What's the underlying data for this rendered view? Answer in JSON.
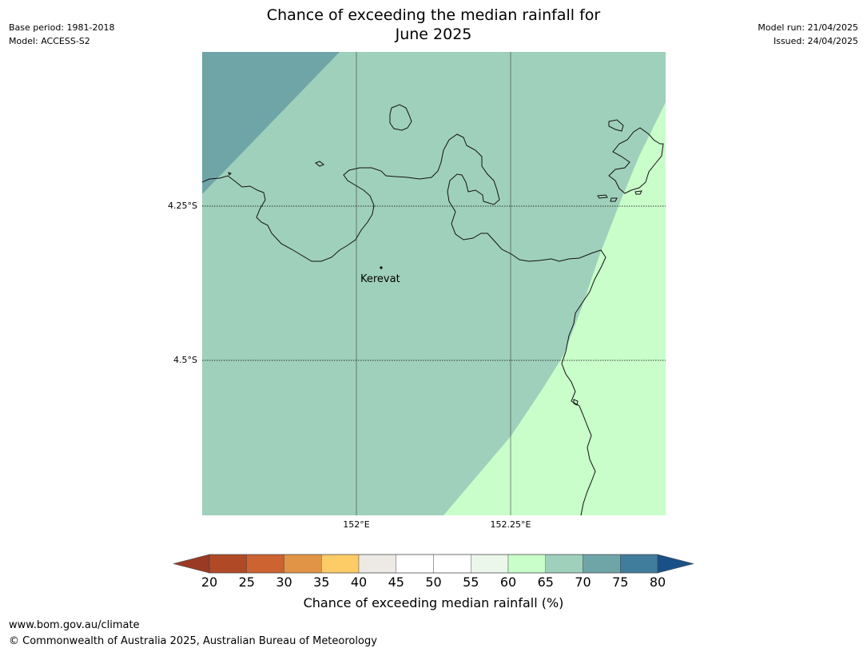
{
  "header": {
    "title_line1": "Chance of exceeding the median rainfall for",
    "title_line2": "June 2025",
    "base_period": "Base period: 1981-2018",
    "model": "Model: ACCESS-S2",
    "model_run": "Model run: 21/04/2025",
    "issued": "Issued: 24/04/2025"
  },
  "map": {
    "lat_labels": [
      "4.25°S",
      "4.5°S"
    ],
    "lon_labels": [
      "152°E",
      "152.25°E"
    ],
    "place": {
      "name": "Kerevat"
    },
    "colors": {
      "band_65_70": "#9fd0bb",
      "band_70_75": "#70a5a8",
      "band_60_65": "#c9fdca",
      "coast": "#111111"
    }
  },
  "colorbar": {
    "ticks": [
      "20",
      "25",
      "30",
      "35",
      "40",
      "45",
      "50",
      "55",
      "60",
      "65",
      "70",
      "75",
      "80"
    ],
    "colors": [
      "#b04a26",
      "#cc6331",
      "#e29446",
      "#fdcc67",
      "#ede9e5",
      "#ffffff",
      "#ffffff",
      "#ebf7ea",
      "#c9fdca",
      "#9fd0bb",
      "#70a5a8",
      "#407c9c"
    ],
    "under_color": "#9a3a24",
    "over_color": "#1a5088",
    "label": "Chance of exceeding median rainfall (%)"
  },
  "footer": {
    "url": "www.bom.gov.au/climate",
    "copyright": "© Commonwealth of Australia 2025, Australian Bureau of Meteorology"
  }
}
